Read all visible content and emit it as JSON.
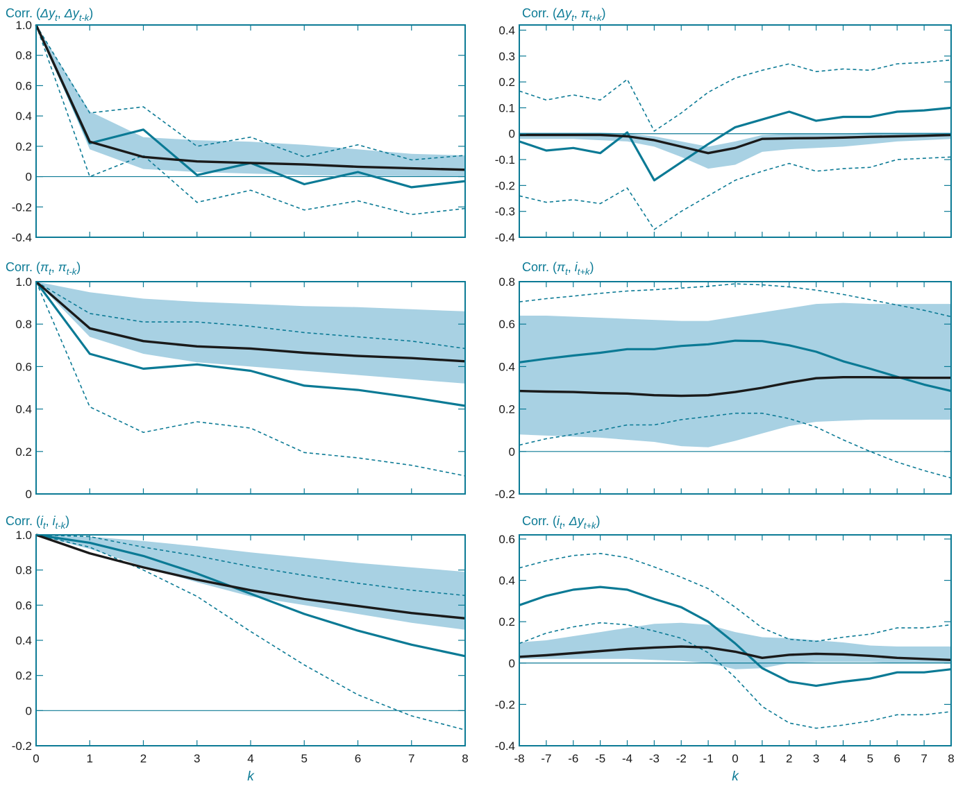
{
  "colors": {
    "frame": "#0b7a95",
    "band": "#a8d1e3",
    "black_line": "#1a1a1a",
    "teal_line": "#0b7a95",
    "tick_text": "#1a1a1a"
  },
  "chart_data": [
    {
      "type": "line",
      "title": "Corr. (Δyt, Δyt-k)",
      "title_parts": [
        "Corr. (",
        "Δy",
        "t",
        ", ",
        "Δy",
        "t-k",
        ")"
      ],
      "xlabel": "",
      "ylabel": "",
      "x": [
        0,
        1,
        2,
        3,
        4,
        5,
        6,
        7,
        8
      ],
      "xticks": [
        "0",
        "1",
        "2",
        "3",
        "4",
        "5",
        "6",
        "7",
        "8"
      ],
      "yticks": [
        "1.0",
        "0.8",
        "0.6",
        "0.4",
        "0.2",
        "0",
        "-0.2",
        "-0.4"
      ],
      "ytick_values": [
        1.0,
        0.8,
        0.6,
        0.4,
        0.2,
        0,
        -0.2,
        -0.4
      ],
      "ylim": [
        -0.4,
        1.0
      ],
      "show_x_tick_labels": false,
      "band": {
        "upper": [
          1.0,
          0.43,
          0.26,
          0.24,
          0.23,
          0.21,
          0.18,
          0.15,
          0.14
        ],
        "lower": [
          1.0,
          0.18,
          0.05,
          0.03,
          0.02,
          0.01,
          0.005,
          0.003,
          0.0
        ]
      },
      "series": [
        {
          "style": "solid-black",
          "values": [
            1.0,
            0.23,
            0.13,
            0.1,
            0.09,
            0.08,
            0.065,
            0.055,
            0.045
          ]
        },
        {
          "style": "solid-teal",
          "values": [
            1.0,
            0.22,
            0.31,
            0.01,
            0.09,
            -0.05,
            0.03,
            -0.07,
            -0.03
          ]
        },
        {
          "style": "dashed-upper",
          "values": [
            1.0,
            0.42,
            0.46,
            0.2,
            0.26,
            0.13,
            0.21,
            0.11,
            0.14
          ]
        },
        {
          "style": "dashed-lower",
          "values": [
            1.0,
            0.0,
            0.14,
            -0.17,
            -0.09,
            -0.22,
            -0.16,
            -0.25,
            -0.21
          ]
        }
      ]
    },
    {
      "type": "line",
      "title": "Corr. (Δyt, πt+k)",
      "title_parts": [
        "Corr. (",
        "Δy",
        "t",
        ", ",
        "π",
        "t+k",
        ")"
      ],
      "xlabel": "",
      "ylabel": "",
      "x": [
        -8,
        -7,
        -6,
        -5,
        -4,
        -3,
        -2,
        -1,
        0,
        1,
        2,
        3,
        4,
        5,
        6,
        7,
        8
      ],
      "xticks": [
        "-8",
        "-7",
        "-6",
        "-5",
        "-4",
        "-3",
        "-2",
        "-1",
        "0",
        "1",
        "2",
        "3",
        "4",
        "5",
        "6",
        "7",
        "8"
      ],
      "yticks": [
        "0.4",
        "0.3",
        "0.2",
        "0.1",
        "0",
        "-0.1",
        "-0.2",
        "-0.3",
        "-0.4"
      ],
      "ytick_values": [
        0.4,
        0.3,
        0.2,
        0.1,
        0,
        -0.1,
        -0.2,
        -0.3,
        -0.4
      ],
      "ylim": [
        -0.4,
        0.42
      ],
      "show_x_tick_labels": false,
      "band": {
        "upper": [
          0.005,
          0.005,
          0.005,
          0.005,
          0.0,
          -0.01,
          -0.03,
          -0.05,
          -0.03,
          -0.005,
          0.0,
          0.0,
          0.0,
          0.005,
          0.005,
          0.005,
          0.005
        ],
        "lower": [
          -0.02,
          -0.02,
          -0.02,
          -0.025,
          -0.03,
          -0.05,
          -0.09,
          -0.135,
          -0.12,
          -0.07,
          -0.06,
          -0.055,
          -0.05,
          -0.04,
          -0.03,
          -0.025,
          -0.02
        ]
      },
      "series": [
        {
          "style": "solid-black",
          "values": [
            -0.005,
            -0.005,
            -0.005,
            -0.005,
            -0.01,
            -0.025,
            -0.05,
            -0.075,
            -0.055,
            -0.02,
            -0.018,
            -0.017,
            -0.015,
            -0.012,
            -0.01,
            -0.008,
            -0.005
          ]
        },
        {
          "style": "solid-teal",
          "values": [
            -0.03,
            -0.065,
            -0.055,
            -0.075,
            0.005,
            -0.18,
            -0.11,
            -0.04,
            0.025,
            0.055,
            0.085,
            0.05,
            0.065,
            0.065,
            0.085,
            0.09,
            0.1
          ]
        },
        {
          "style": "dashed-upper",
          "values": [
            0.165,
            0.13,
            0.15,
            0.13,
            0.21,
            0.01,
            0.08,
            0.16,
            0.215,
            0.245,
            0.27,
            0.24,
            0.25,
            0.245,
            0.27,
            0.275,
            0.285
          ]
        },
        {
          "style": "dashed-lower",
          "values": [
            -0.24,
            -0.265,
            -0.255,
            -0.27,
            -0.21,
            -0.37,
            -0.3,
            -0.24,
            -0.18,
            -0.145,
            -0.115,
            -0.145,
            -0.135,
            -0.13,
            -0.1,
            -0.095,
            -0.09
          ]
        }
      ]
    },
    {
      "type": "line",
      "title": "Corr. (πt, πt-k)",
      "title_parts": [
        "Corr. (",
        "π",
        "t",
        ", ",
        "π",
        "t-k",
        ")"
      ],
      "xlabel": "",
      "ylabel": "",
      "x": [
        0,
        1,
        2,
        3,
        4,
        5,
        6,
        7,
        8
      ],
      "xticks": [
        "0",
        "1",
        "2",
        "3",
        "4",
        "5",
        "6",
        "7",
        "8"
      ],
      "yticks": [
        "1.0",
        "0.8",
        "0.6",
        "0.4",
        "0.2",
        "0"
      ],
      "ytick_values": [
        1.0,
        0.8,
        0.6,
        0.4,
        0.2,
        0
      ],
      "ylim": [
        0,
        1.0
      ],
      "show_x_tick_labels": false,
      "band": {
        "upper": [
          1.0,
          0.95,
          0.92,
          0.905,
          0.895,
          0.885,
          0.88,
          0.87,
          0.86
        ],
        "lower": [
          1.0,
          0.74,
          0.66,
          0.62,
          0.6,
          0.58,
          0.56,
          0.54,
          0.52
        ]
      },
      "series": [
        {
          "style": "solid-black",
          "values": [
            1.0,
            0.78,
            0.72,
            0.695,
            0.685,
            0.665,
            0.65,
            0.64,
            0.625
          ]
        },
        {
          "style": "solid-teal",
          "values": [
            1.0,
            0.66,
            0.59,
            0.61,
            0.58,
            0.51,
            0.49,
            0.455,
            0.415
          ]
        },
        {
          "style": "dashed-upper",
          "values": [
            1.0,
            0.85,
            0.81,
            0.81,
            0.79,
            0.76,
            0.74,
            0.72,
            0.685
          ]
        },
        {
          "style": "dashed-lower",
          "values": [
            1.0,
            0.41,
            0.29,
            0.34,
            0.31,
            0.195,
            0.17,
            0.135,
            0.085
          ]
        }
      ]
    },
    {
      "type": "line",
      "title": "Corr. (πt, it+k)",
      "title_parts": [
        "Corr. (",
        "π",
        "t",
        ", ",
        "i",
        "t+k",
        ")"
      ],
      "xlabel": "",
      "ylabel": "",
      "x": [
        -8,
        -7,
        -6,
        -5,
        -4,
        -3,
        -2,
        -1,
        0,
        1,
        2,
        3,
        4,
        5,
        6,
        7,
        8
      ],
      "xticks": [
        "-8",
        "-7",
        "-6",
        "-5",
        "-4",
        "-3",
        "-2",
        "-1",
        "0",
        "1",
        "2",
        "3",
        "4",
        "5",
        "6",
        "7",
        "8"
      ],
      "yticks": [
        "0.8",
        "0.6",
        "0.4",
        "0.2",
        "0",
        "-0.2"
      ],
      "ytick_values": [
        0.8,
        0.6,
        0.4,
        0.2,
        0,
        -0.2
      ],
      "ylim": [
        -0.2,
        0.8
      ],
      "show_x_tick_labels": false,
      "band": {
        "upper": [
          0.64,
          0.64,
          0.635,
          0.63,
          0.625,
          0.62,
          0.615,
          0.615,
          0.635,
          0.655,
          0.675,
          0.695,
          0.7,
          0.695,
          0.695,
          0.695,
          0.695
        ],
        "lower": [
          0.08,
          0.075,
          0.07,
          0.065,
          0.055,
          0.045,
          0.025,
          0.02,
          0.05,
          0.085,
          0.12,
          0.14,
          0.145,
          0.15,
          0.15,
          0.15,
          0.15
        ]
      },
      "series": [
        {
          "style": "solid-black",
          "values": [
            0.285,
            0.282,
            0.28,
            0.275,
            0.273,
            0.265,
            0.262,
            0.265,
            0.28,
            0.3,
            0.325,
            0.345,
            0.35,
            0.35,
            0.348,
            0.347,
            0.347
          ]
        },
        {
          "style": "solid-teal",
          "values": [
            0.42,
            0.437,
            0.452,
            0.465,
            0.482,
            0.482,
            0.497,
            0.505,
            0.522,
            0.52,
            0.5,
            0.47,
            0.425,
            0.39,
            0.352,
            0.315,
            0.285
          ]
        },
        {
          "style": "dashed-upper",
          "values": [
            0.705,
            0.72,
            0.732,
            0.745,
            0.756,
            0.762,
            0.77,
            0.778,
            0.79,
            0.785,
            0.775,
            0.76,
            0.74,
            0.715,
            0.69,
            0.665,
            0.635
          ]
        },
        {
          "style": "dashed-lower",
          "values": [
            0.03,
            0.06,
            0.08,
            0.1,
            0.125,
            0.125,
            0.15,
            0.165,
            0.18,
            0.18,
            0.155,
            0.115,
            0.055,
            0.0,
            -0.05,
            -0.09,
            -0.125
          ]
        }
      ]
    },
    {
      "type": "line",
      "title": "Corr. (it, it-k)",
      "title_parts": [
        "Corr. (",
        "i",
        "t",
        ", ",
        "i",
        "t-k",
        ")"
      ],
      "xlabel": "k",
      "ylabel": "",
      "x": [
        0,
        1,
        2,
        3,
        4,
        5,
        6,
        7,
        8
      ],
      "xticks": [
        "0",
        "1",
        "2",
        "3",
        "4",
        "5",
        "6",
        "7",
        "8"
      ],
      "yticks": [
        "1.0",
        "0.8",
        "0.6",
        "0.4",
        "0.2",
        "0",
        "-0.2"
      ],
      "ytick_values": [
        1.0,
        0.8,
        0.6,
        0.4,
        0.2,
        0,
        -0.2
      ],
      "ylim": [
        -0.2,
        1.0
      ],
      "show_x_tick_labels": true,
      "band": {
        "upper": [
          1.0,
          0.99,
          0.965,
          0.935,
          0.9,
          0.87,
          0.84,
          0.815,
          0.79
        ],
        "lower": [
          1.0,
          0.92,
          0.82,
          0.73,
          0.65,
          0.6,
          0.55,
          0.5,
          0.46
        ]
      },
      "series": [
        {
          "style": "solid-black",
          "values": [
            1.0,
            0.895,
            0.815,
            0.745,
            0.685,
            0.635,
            0.595,
            0.555,
            0.525
          ]
        },
        {
          "style": "solid-teal",
          "values": [
            1.0,
            0.955,
            0.88,
            0.78,
            0.665,
            0.55,
            0.455,
            0.375,
            0.31
          ]
        },
        {
          "style": "dashed-upper",
          "values": [
            1.0,
            0.99,
            0.93,
            0.88,
            0.82,
            0.77,
            0.725,
            0.685,
            0.655
          ]
        },
        {
          "style": "dashed-lower",
          "values": [
            1.0,
            0.93,
            0.8,
            0.65,
            0.45,
            0.26,
            0.09,
            -0.03,
            -0.11
          ]
        }
      ]
    },
    {
      "type": "line",
      "title": "Corr. (it, Δyt+k)",
      "title_parts": [
        "Corr. (",
        "i",
        "t",
        ", ",
        "Δy",
        "t+k",
        ")"
      ],
      "xlabel": "k",
      "ylabel": "",
      "x": [
        -8,
        -7,
        -6,
        -5,
        -4,
        -3,
        -2,
        -1,
        0,
        1,
        2,
        3,
        4,
        5,
        6,
        7,
        8
      ],
      "xticks": [
        "-8",
        "-7",
        "-6",
        "-5",
        "-4",
        "-3",
        "-2",
        "-1",
        "0",
        "1",
        "2",
        "3",
        "4",
        "5",
        "6",
        "7",
        "8"
      ],
      "yticks": [
        "0.6",
        "0.4",
        "0.2",
        "0",
        "-0.2",
        "-0.4"
      ],
      "ytick_values": [
        0.6,
        0.4,
        0.2,
        0,
        -0.2,
        -0.4
      ],
      "ylim": [
        -0.4,
        0.62
      ],
      "show_x_tick_labels": true,
      "band": {
        "upper": [
          0.1,
          0.11,
          0.13,
          0.15,
          0.17,
          0.19,
          0.195,
          0.185,
          0.15,
          0.125,
          0.12,
          0.11,
          0.1,
          0.085,
          0.08,
          0.08,
          0.08
        ],
        "lower": [
          0.02,
          0.02,
          0.02,
          0.02,
          0.02,
          0.015,
          0.01,
          0.0,
          -0.03,
          -0.025,
          0.0,
          0.005,
          0.005,
          0.005,
          0.0,
          0.0,
          0.0
        ]
      },
      "series": [
        {
          "style": "solid-black",
          "values": [
            0.03,
            0.038,
            0.048,
            0.058,
            0.068,
            0.075,
            0.08,
            0.075,
            0.055,
            0.025,
            0.04,
            0.045,
            0.042,
            0.035,
            0.025,
            0.02,
            0.015
          ]
        },
        {
          "style": "solid-teal",
          "values": [
            0.28,
            0.325,
            0.355,
            0.368,
            0.355,
            0.31,
            0.27,
            0.2,
            0.095,
            -0.025,
            -0.09,
            -0.11,
            -0.09,
            -0.075,
            -0.045,
            -0.045,
            -0.03
          ]
        },
        {
          "style": "dashed-upper",
          "values": [
            0.46,
            0.495,
            0.52,
            0.53,
            0.51,
            0.465,
            0.415,
            0.36,
            0.27,
            0.17,
            0.115,
            0.105,
            0.125,
            0.14,
            0.17,
            0.17,
            0.185
          ]
        },
        {
          "style": "dashed-lower",
          "values": [
            0.095,
            0.145,
            0.175,
            0.195,
            0.185,
            0.155,
            0.12,
            0.05,
            -0.07,
            -0.21,
            -0.29,
            -0.315,
            -0.3,
            -0.28,
            -0.25,
            -0.25,
            -0.235
          ]
        }
      ]
    }
  ]
}
